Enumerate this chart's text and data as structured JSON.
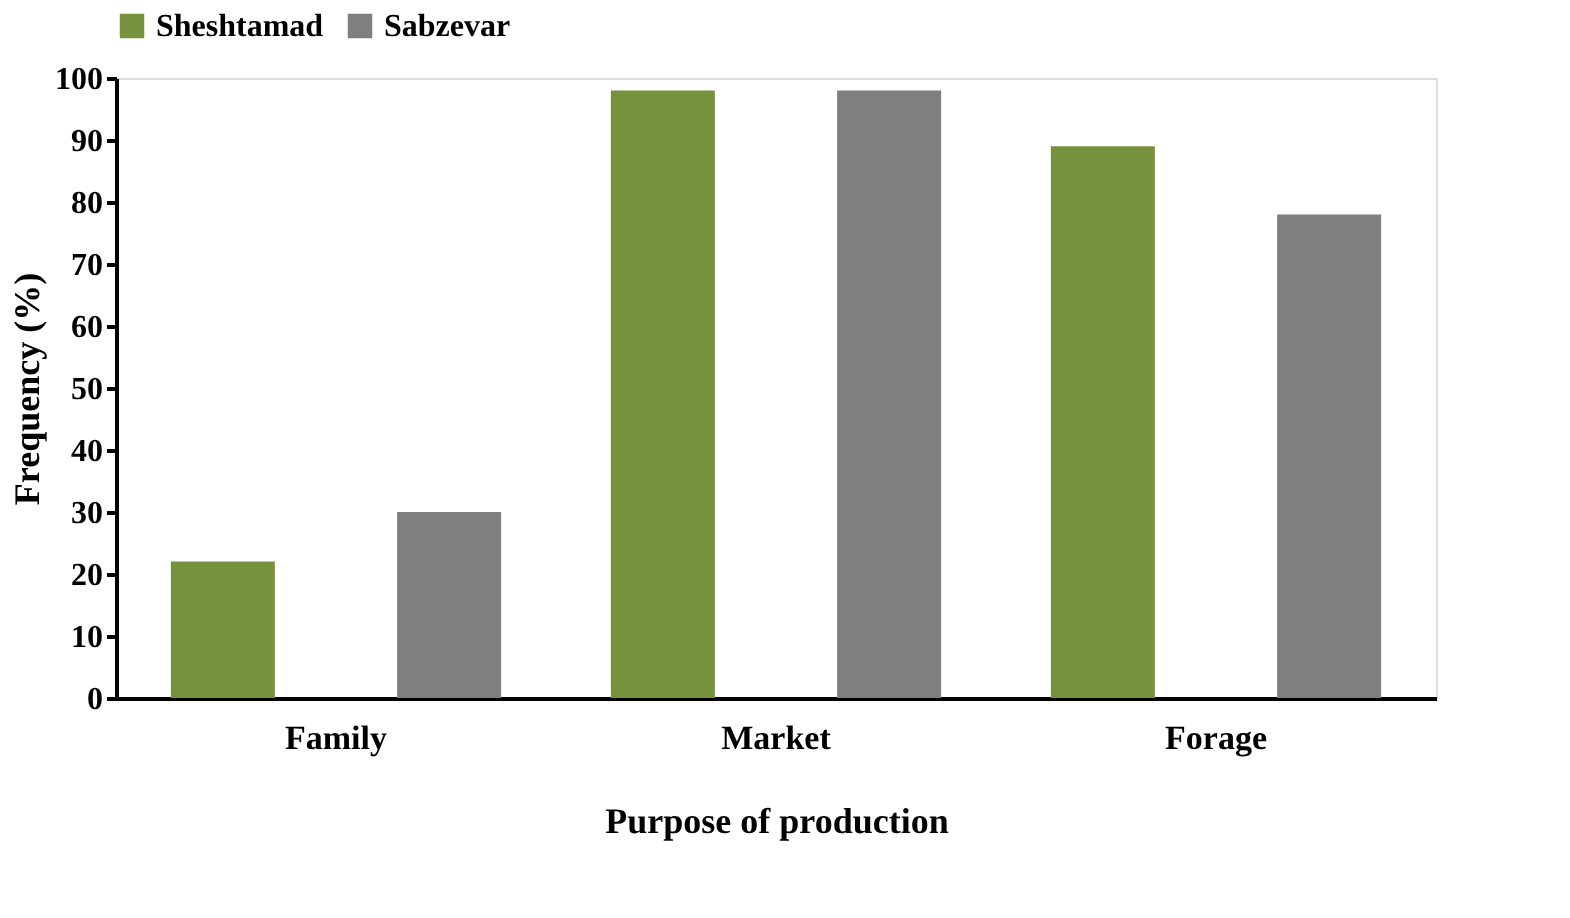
{
  "chart_data": {
    "type": "bar",
    "xlabel": "Purpose of production",
    "ylabel": "Frequency (%)",
    "categories": [
      "Family",
      "Market",
      "Forage"
    ],
    "series": [
      {
        "name": "Sheshtamad",
        "color": "#76923c",
        "values": [
          22,
          98,
          89
        ]
      },
      {
        "name": "Sabzevar",
        "color": "#7f7f7f",
        "values": [
          30,
          98,
          78
        ]
      }
    ],
    "ylim": [
      0,
      100
    ],
    "yticks": [
      0,
      10,
      20,
      30,
      40,
      50,
      60,
      70,
      80,
      90,
      100
    ],
    "grid": false,
    "legend": "top"
  }
}
